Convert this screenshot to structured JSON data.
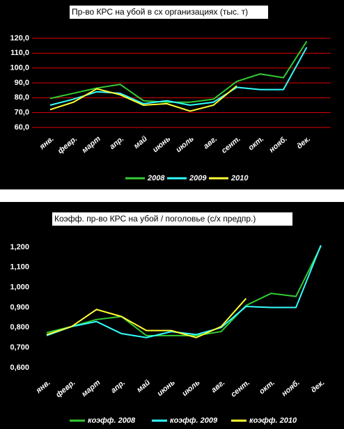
{
  "chart_data": [
    {
      "type": "line",
      "title": "Пр-во КРС на убой в сх организациях (тыс. т)",
      "categories": [
        "янв.",
        "февр.",
        "март",
        "апр.",
        "май",
        "июнь",
        "июль",
        "авг.",
        "сент.",
        "окт.",
        "нояб.",
        "дек."
      ],
      "series": [
        {
          "name": "2008",
          "color": "#33cc33",
          "values": [
            79.5,
            83,
            86.5,
            89,
            78,
            77,
            77,
            79,
            91,
            96,
            93.5,
            118
          ]
        },
        {
          "name": "2009",
          "color": "#33ffff",
          "values": [
            75,
            79,
            84,
            83,
            76,
            78,
            75,
            77,
            87,
            85.5,
            85.5,
            114
          ]
        },
        {
          "name": "2010",
          "color": "#ffff33",
          "values": [
            72,
            77,
            86,
            82,
            75,
            76,
            71,
            75,
            88,
            null,
            null,
            null
          ]
        }
      ],
      "ylim": [
        60,
        120
      ],
      "yticks": [
        {
          "value": 60,
          "label": "60,0"
        },
        {
          "value": 70,
          "label": "70,0"
        },
        {
          "value": 80,
          "label": "80,0"
        },
        {
          "value": 90,
          "label": "90,0"
        },
        {
          "value": 100,
          "label": "100,0"
        },
        {
          "value": 110,
          "label": "110,0"
        },
        {
          "value": 120,
          "label": "120,0"
        }
      ],
      "grid": true,
      "legend": "bottom"
    },
    {
      "type": "line",
      "title": "Коэфф. пр-во КРС на убой / поголовье (с/х предпр.)",
      "categories": [
        "янв.",
        "февр.",
        "март",
        "апр.",
        "май",
        "июнь",
        "июль",
        "авг.",
        "сент.",
        "окт.",
        "нояб.",
        "дек."
      ],
      "series": [
        {
          "name": "коэфф. 2008",
          "color": "#33cc33",
          "values": [
            0.775,
            0.805,
            0.84,
            0.855,
            0.76,
            0.76,
            0.76,
            0.78,
            0.91,
            0.97,
            0.955,
            1.205
          ]
        },
        {
          "name": "коэфф. 2009",
          "color": "#33ffff",
          "values": [
            0.76,
            0.805,
            0.83,
            0.77,
            0.75,
            0.78,
            0.765,
            0.8,
            0.905,
            0.9,
            0.9,
            1.21
          ]
        },
        {
          "name": "коэфф. 2010",
          "color": "#ffff33",
          "values": [
            0.765,
            0.805,
            0.89,
            0.855,
            0.785,
            0.785,
            0.75,
            0.805,
            0.945,
            null,
            null,
            null
          ]
        }
      ],
      "ylim": [
        0.6,
        1.2
      ],
      "yticks": [
        {
          "value": 0.6,
          "label": "0,600"
        },
        {
          "value": 0.7,
          "label": "0,700"
        },
        {
          "value": 0.8,
          "label": "0,800"
        },
        {
          "value": 0.9,
          "label": "0,900"
        },
        {
          "value": 1.0,
          "label": "1,000"
        },
        {
          "value": 1.1,
          "label": "1,100"
        },
        {
          "value": 1.2,
          "label": "1,200"
        }
      ],
      "grid": false,
      "legend": "bottom"
    }
  ]
}
